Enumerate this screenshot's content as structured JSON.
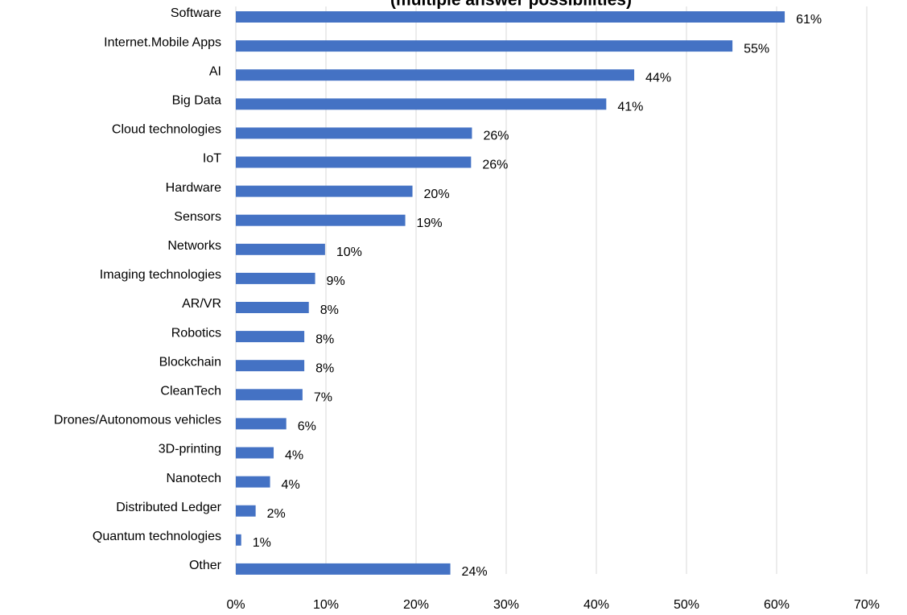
{
  "chart_data": {
    "type": "bar",
    "orientation": "horizontal",
    "subtitle": "(multiple answer possibilities)",
    "categories": [
      "Software",
      "Internet.Mobile  Apps",
      "AI",
      "Big Data",
      "Cloud technologies",
      "IoT",
      "Hardware",
      "Sensors",
      "Networks",
      "Imaging technologies",
      "AR/VR",
      "Robotics",
      "Blockchain",
      "CleanTech",
      "Drones/Autonomous  vehicles",
      "3D-printing",
      "Nanotech",
      "Distributed Ledger",
      "Quantum technologies",
      "Other"
    ],
    "values": [
      60.9,
      55.1,
      44.2,
      41.1,
      26.2,
      26.1,
      19.6,
      18.8,
      9.9,
      8.8,
      8.1,
      7.6,
      7.6,
      7.4,
      5.6,
      4.2,
      3.8,
      2.2,
      0.6,
      23.8
    ],
    "value_labels": [
      "61%",
      "55%",
      "44%",
      "41%",
      "26%",
      "26%",
      "20%",
      "19%",
      "10%",
      "9%",
      "8%",
      "8%",
      "8%",
      "7%",
      "6%",
      "4%",
      "4%",
      "2%",
      "1%",
      "24%"
    ],
    "color": "#4472c4",
    "xlim": [
      0,
      70
    ],
    "xticks": [
      {
        "value": 0,
        "label": "0%"
      },
      {
        "value": 10,
        "label": "10%"
      },
      {
        "value": 20,
        "label": "20%"
      },
      {
        "value": 30,
        "label": "30%"
      },
      {
        "value": 40,
        "label": "40%"
      },
      {
        "value": 50,
        "label": "50%"
      },
      {
        "value": 60,
        "label": "60%"
      },
      {
        "value": 70,
        "label": "70%"
      }
    ],
    "grid": true
  }
}
